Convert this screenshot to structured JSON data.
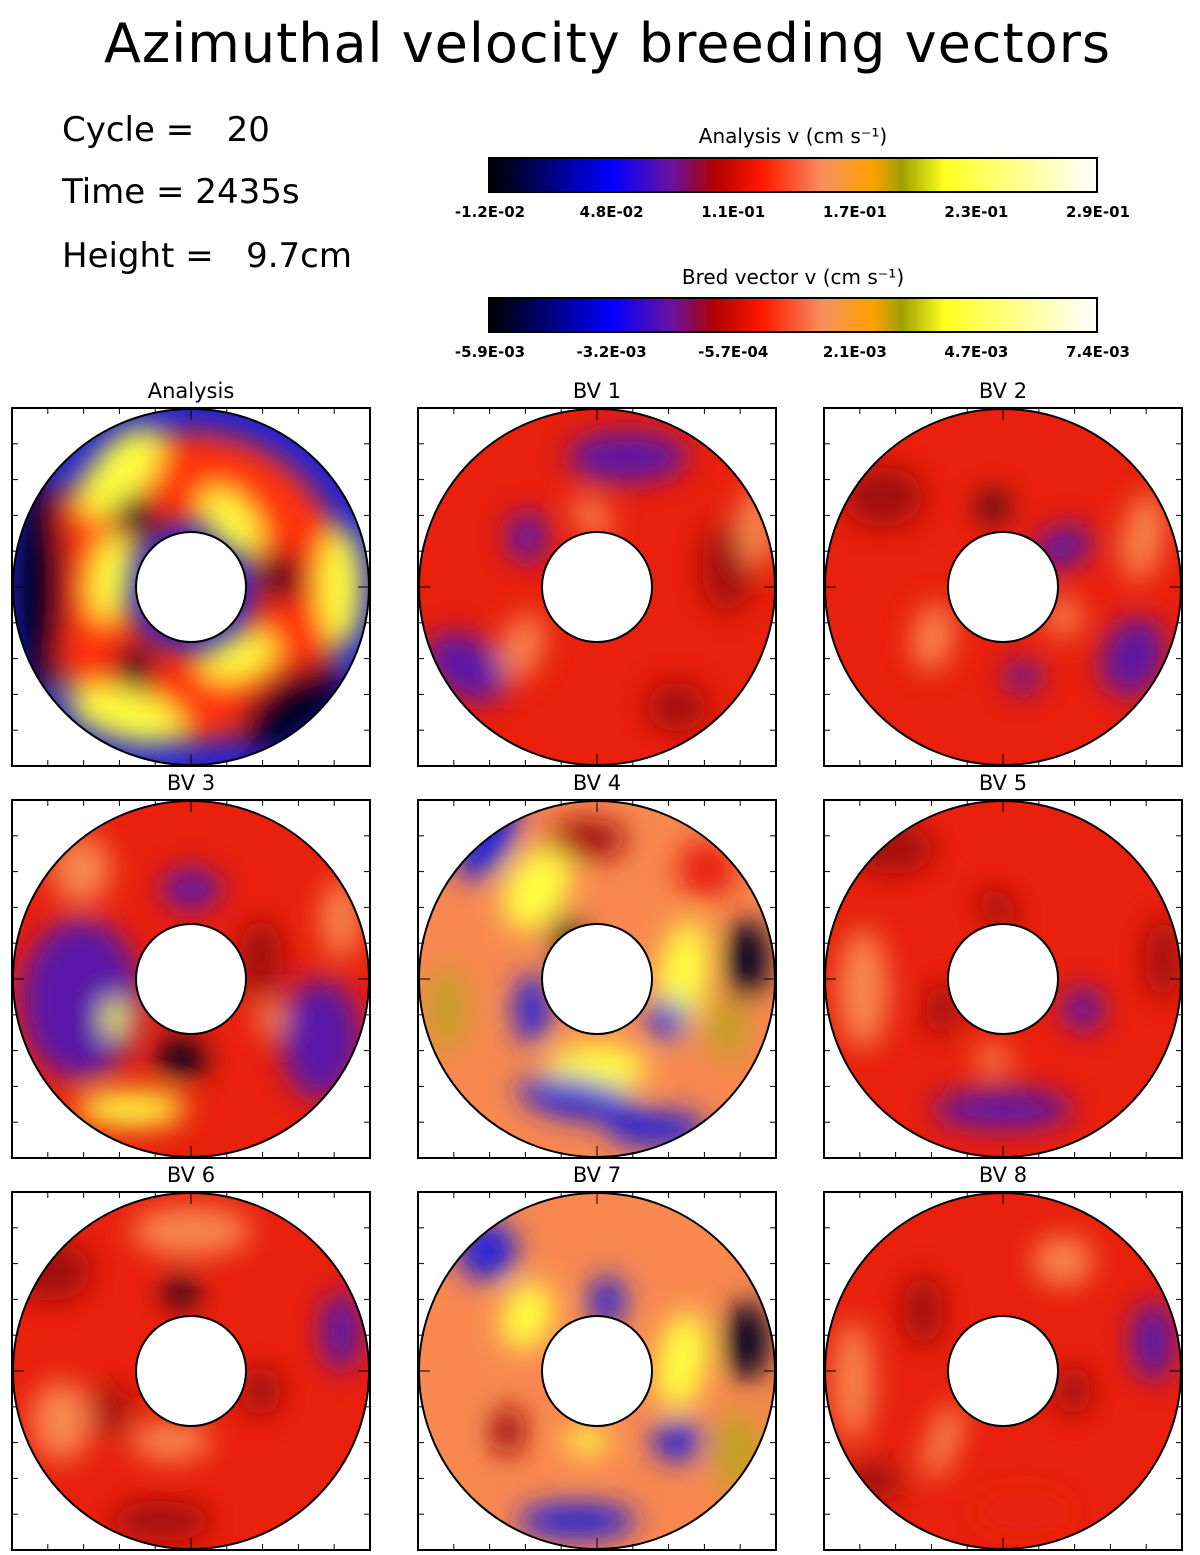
{
  "title": "Azimuthal velocity breeding vectors",
  "info": {
    "cycle": "Cycle =   20",
    "time": "Time = 2435s",
    "height": "Height =   9.7cm"
  },
  "chart_data": {
    "type": "heatmap",
    "colormap": [
      "#000000",
      "#0000ff",
      "#6a10a0",
      "#b00000",
      "#ff1a00",
      "#f79060",
      "#ffa000",
      "#a0a000",
      "#ffff20",
      "#ffffff"
    ],
    "colorbars": [
      {
        "title": "Analysis v (cm s⁻¹)",
        "range": [
          -0.012,
          0.29
        ],
        "ticks": [
          "-1.2E-02",
          "4.8E-02",
          "1.1E-01",
          "1.7E-01",
          "2.3E-01",
          "2.9E-01"
        ]
      },
      {
        "title": "Bred vector v (cm s⁻¹)",
        "range": [
          -0.0059,
          0.0074
        ],
        "ticks": [
          "-5.9E-03",
          "-3.2E-03",
          "-5.7E-04",
          "2.1E-03",
          "4.7E-03",
          "7.4E-03"
        ]
      }
    ],
    "panels": [
      {
        "title": "Analysis"
      },
      {
        "title": "BV 1"
      },
      {
        "title": "BV 2"
      },
      {
        "title": "BV 3"
      },
      {
        "title": "BV 4"
      },
      {
        "title": "BV 5"
      },
      {
        "title": "BV 6"
      },
      {
        "title": "BV 7"
      },
      {
        "title": "BV 8"
      }
    ]
  }
}
